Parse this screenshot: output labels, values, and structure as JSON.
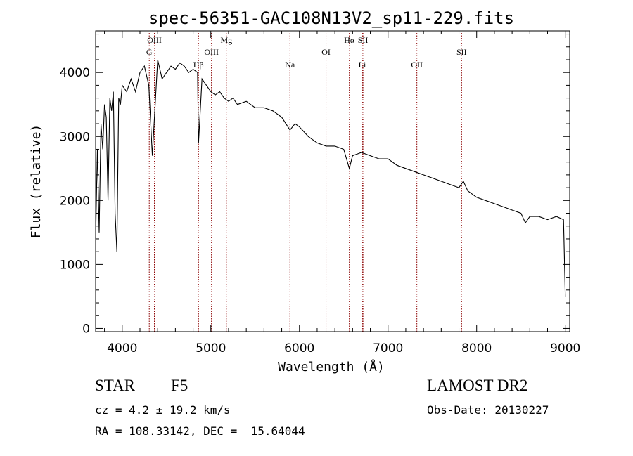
{
  "chart_data": {
    "type": "line",
    "title": "spec-56351-GAC108N13V2_sp11-229.fits",
    "xlabel": "Wavelength (Å)",
    "ylabel": "Flux (relative)",
    "xlim": [
      3700,
      9050
    ],
    "ylim": [
      -50,
      4650
    ],
    "x_ticks": [
      4000,
      5000,
      6000,
      7000,
      8000,
      9000
    ],
    "y_ticks": [
      0,
      1000,
      2000,
      3000,
      4000
    ],
    "grid": false,
    "line_color": "#000000",
    "marker_color": "#8b0000",
    "spectrum": {
      "x": [
        3700,
        3720,
        3740,
        3760,
        3780,
        3800,
        3820,
        3840,
        3860,
        3880,
        3900,
        3920,
        3940,
        3960,
        3980,
        4000,
        4050,
        4100,
        4150,
        4200,
        4250,
        4300,
        4340,
        4400,
        4450,
        4500,
        4550,
        4600,
        4650,
        4700,
        4750,
        4800,
        4850,
        4861,
        4900,
        4950,
        5000,
        5050,
        5100,
        5150,
        5200,
        5250,
        5300,
        5400,
        5500,
        5600,
        5700,
        5800,
        5893,
        5950,
        6000,
        6100,
        6200,
        6300,
        6400,
        6500,
        6563,
        6600,
        6700,
        6800,
        6900,
        7000,
        7100,
        7200,
        7300,
        7400,
        7500,
        7600,
        7700,
        7800,
        7850,
        7900,
        8000,
        8100,
        8200,
        8300,
        8400,
        8500,
        8550,
        8600,
        8700,
        8800,
        8900,
        8980,
        9000
      ],
      "y": [
        1400,
        2800,
        1500,
        3200,
        2800,
        3500,
        3300,
        2000,
        3600,
        3400,
        3700,
        1800,
        1200,
        3600,
        3500,
        3800,
        3700,
        3900,
        3700,
        4000,
        4100,
        3800,
        2700,
        4200,
        3900,
        4000,
        4100,
        4050,
        4150,
        4100,
        4000,
        4050,
        4000,
        2900,
        3900,
        3800,
        3700,
        3650,
        3700,
        3600,
        3550,
        3600,
        3500,
        3550,
        3450,
        3450,
        3400,
        3300,
        3100,
        3200,
        3150,
        3000,
        2900,
        2850,
        2850,
        2800,
        2500,
        2700,
        2750,
        2700,
        2650,
        2650,
        2550,
        2500,
        2450,
        2400,
        2350,
        2300,
        2250,
        2200,
        2300,
        2150,
        2050,
        2000,
        1950,
        1900,
        1850,
        1800,
        1650,
        1750,
        1750,
        1700,
        1750,
        1700,
        500
      ]
    },
    "line_markers": [
      {
        "label": "G",
        "x": 4305,
        "row": 2
      },
      {
        "label": "OIII",
        "x": 4363,
        "row": 1
      },
      {
        "label": "Hβ",
        "x": 4861,
        "row": 3
      },
      {
        "label": "OIII",
        "x": 5007,
        "row": 2
      },
      {
        "label": "Mg",
        "x": 5175,
        "row": 1
      },
      {
        "label": "Na",
        "x": 5893,
        "row": 3
      },
      {
        "label": "OI",
        "x": 6300,
        "row": 2
      },
      {
        "label": "Hα",
        "x": 6563,
        "row": 1
      },
      {
        "label": "SII",
        "x": 6717,
        "row": 1
      },
      {
        "label": "Li",
        "x": 6708,
        "row": 3
      },
      {
        "label": "OII",
        "x": 7325,
        "row": 3
      },
      {
        "label": "SII",
        "x": 7830,
        "row": 2
      }
    ]
  },
  "footer": {
    "object_class": "STAR",
    "subclass": "F5",
    "survey": "LAMOST DR2",
    "redshift": "cz = 4.2 ± 19.2 km/s",
    "obs_date": "Obs-Date: 20130227",
    "radec": "RA = 108.33142, DEC =  15.64044"
  }
}
